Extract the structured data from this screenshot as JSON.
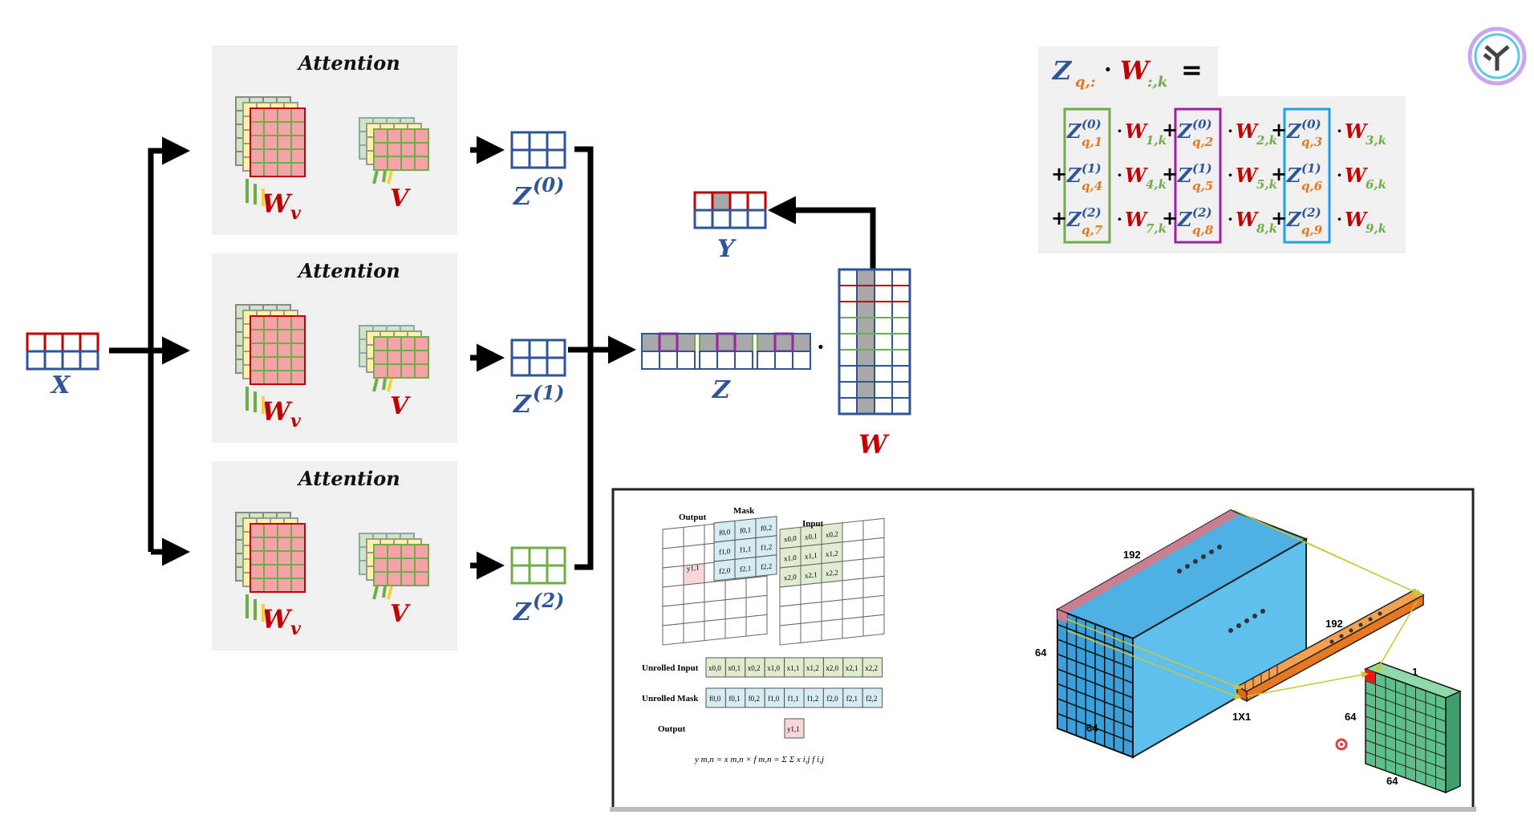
{
  "colors": {
    "blue": "#2f5597",
    "red": "#c00000",
    "green": "#70ad47",
    "yellow": "#f4d03f",
    "pink": "#f4a3a8",
    "gray_panel": "#f0f0f0",
    "magenta": "#a020a0",
    "cyan": "#1fa3e0",
    "orange": "#e87722",
    "sky": "#5fb8e6"
  },
  "input_label": "X",
  "attention_blocks": [
    {
      "title": "Attention",
      "wv_label": "W",
      "wv_sub": "v",
      "v_label": "V",
      "z_label": "Z",
      "z_sup": "(0)"
    },
    {
      "title": "Attention",
      "wv_label": "W",
      "wv_sub": "v",
      "v_label": "V",
      "z_label": "Z",
      "z_sup": "(1)"
    },
    {
      "title": "Attention",
      "wv_label": "W",
      "wv_sub": "v",
      "v_label": "V",
      "z_label": "Z",
      "z_sup": "(2)"
    }
  ],
  "concat_label": "Z",
  "dot": "·",
  "weight_label": "W",
  "output_label": "Y",
  "formula": {
    "lhs_z": "Z",
    "lhs_z_sub": "q,:",
    "lhs_w": "W",
    "lhs_w_sub": ":,k",
    "equals": "=",
    "rows": [
      [
        {
          "z_sup": "(0)",
          "z_sub": "q,1",
          "w_sub": "1,k"
        },
        {
          "z_sup": "(0)",
          "z_sub": "q,2",
          "w_sub": "2,k"
        },
        {
          "z_sup": "(0)",
          "z_sub": "q,3",
          "w_sub": "3,k"
        }
      ],
      [
        {
          "z_sup": "(1)",
          "z_sub": "q,4",
          "w_sub": "4,k"
        },
        {
          "z_sup": "(1)",
          "z_sub": "q,5",
          "w_sub": "5,k"
        },
        {
          "z_sup": "(1)",
          "z_sub": "q,6",
          "w_sub": "6,k"
        }
      ],
      [
        {
          "z_sup": "(2)",
          "z_sub": "q,7",
          "w_sub": "7,k"
        },
        {
          "z_sup": "(2)",
          "z_sub": "q,8",
          "w_sub": "8,k"
        },
        {
          "z_sup": "(2)",
          "z_sub": "q,9",
          "w_sub": "9,k"
        }
      ]
    ],
    "plus": "+",
    "z": "Z",
    "w": "W"
  },
  "inset": {
    "output_label": "Output",
    "mask_label": "Mask",
    "input_label": "Input",
    "unrolled_input_label": "Unrolled Input",
    "unrolled_mask_label": "Unrolled Mask",
    "output_row_label": "Output",
    "mask_cells": [
      "f0,0",
      "f0,1",
      "f0,2",
      "f1,0",
      "f1,1",
      "f1,2",
      "f2,0",
      "f2,1",
      "f2,2"
    ],
    "input_cells": [
      "x0,0",
      "x0,1",
      "x0,2",
      "x1,0",
      "x1,1",
      "x1,2",
      "x2,0",
      "x2,1",
      "x2,2"
    ],
    "output_cell": "y1,1",
    "equation": "y m,n = x m,n × f m,n = Σ Σ x i,j f i,j",
    "dim_192_top": "192",
    "dim_64_left": "64",
    "dim_64_bottom": "64",
    "dim_192_bar": "192",
    "dim_1x1": "1X1",
    "dim_1": "1",
    "dim_64_right": "64",
    "dim_64_out": "64"
  }
}
